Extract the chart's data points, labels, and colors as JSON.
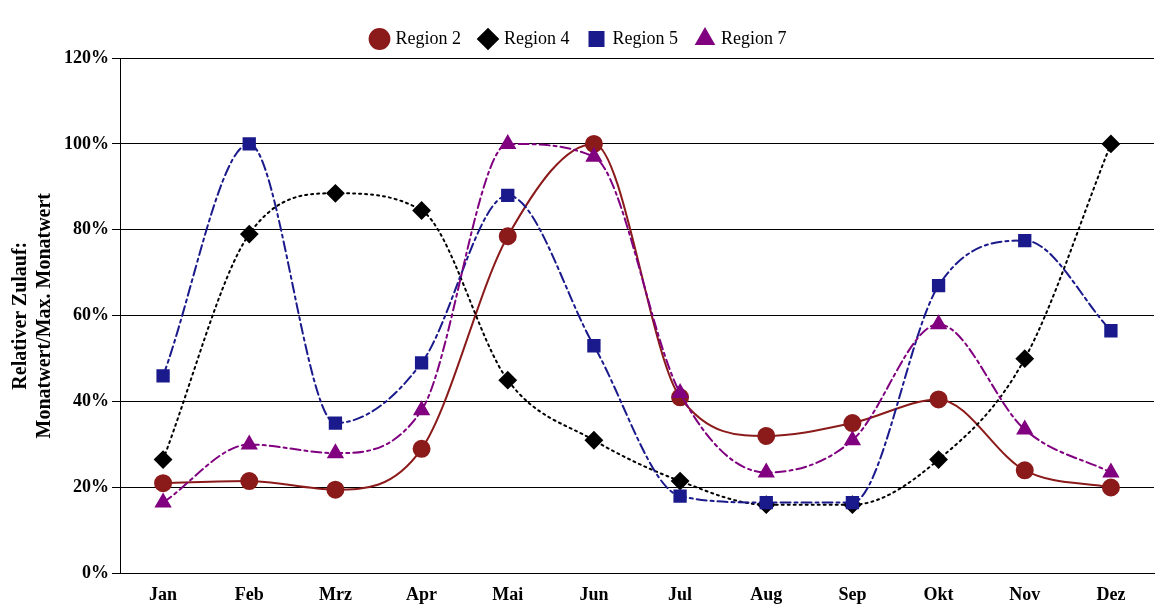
{
  "chart_data": {
    "type": "line",
    "ylabel": "Relativer Zulauf:\nMonatwert/Max. Monatwert",
    "categories": [
      "Jan",
      "Feb",
      "Mrz",
      "Apr",
      "Mai",
      "Jun",
      "Jul",
      "Aug",
      "Sep",
      "Okt",
      "Nov",
      "Dez"
    ],
    "ylim": [
      0,
      120
    ],
    "yticks": [
      {
        "value": 0,
        "label": "0%"
      },
      {
        "value": 20,
        "label": "20%"
      },
      {
        "value": 40,
        "label": "40%"
      },
      {
        "value": 60,
        "label": "60%"
      },
      {
        "value": 80,
        "label": "80%"
      },
      {
        "value": 100,
        "label": "100%"
      },
      {
        "value": 120,
        "label": "120%"
      }
    ],
    "grid": "y",
    "legend": "top",
    "series": [
      {
        "name": "Region 2",
        "color": "#8b1a1a",
        "marker": "circle",
        "line_style": "solid",
        "values": [
          21,
          21.5,
          19.5,
          29,
          78.5,
          100,
          41,
          32,
          35,
          40.5,
          24,
          20
        ]
      },
      {
        "name": "Region 4",
        "color": "#000000",
        "marker": "diamond",
        "line_style": "dotted",
        "values": [
          26.5,
          79,
          88.5,
          84.5,
          45,
          31,
          21.5,
          16,
          16,
          26.5,
          50,
          100
        ]
      },
      {
        "name": "Region 5",
        "color": "#1a1a8c",
        "marker": "square",
        "line_style": "dashed",
        "values": [
          46,
          100,
          35,
          49,
          88,
          53,
          18,
          16.5,
          16.5,
          67,
          77.5,
          56.5
        ]
      },
      {
        "name": "Region 7",
        "color": "#800080",
        "marker": "triangle",
        "line_style": "dashed",
        "values": [
          16.5,
          30,
          28,
          38,
          100,
          97,
          42,
          23.5,
          31,
          58,
          33.5,
          23.5
        ]
      }
    ]
  }
}
